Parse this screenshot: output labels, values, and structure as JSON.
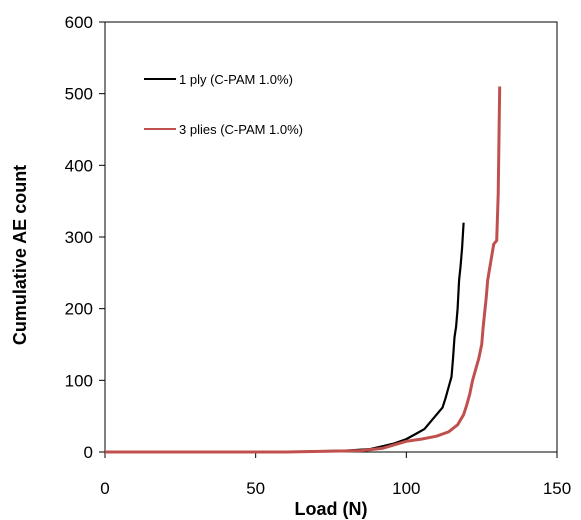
{
  "chart_data": {
    "type": "line",
    "xlabel": "Load (N)",
    "ylabel": "Cumulative AE count",
    "xlim": [
      0,
      150
    ],
    "ylim": [
      0,
      600
    ],
    "x_ticks": [
      0,
      50,
      100,
      150
    ],
    "y_ticks": [
      0,
      100,
      200,
      300,
      400,
      500,
      600
    ],
    "x_tick_labels": [
      "0",
      "50",
      "100",
      "150"
    ],
    "y_tick_labels": [
      "0",
      "100",
      "200",
      "300",
      "400",
      "500",
      "600"
    ],
    "grid": false,
    "legend_position": "top-left",
    "series": [
      {
        "name": "1 ply (C-PAM 1.0%)",
        "color": "#000000",
        "points": [
          [
            0,
            0
          ],
          [
            60,
            0
          ],
          [
            80,
            2
          ],
          [
            88,
            4
          ],
          [
            92,
            8
          ],
          [
            96,
            12
          ],
          [
            100,
            18
          ],
          [
            103,
            25
          ],
          [
            106,
            32
          ],
          [
            108,
            42
          ],
          [
            110,
            52
          ],
          [
            112,
            62
          ],
          [
            113,
            75
          ],
          [
            114,
            90
          ],
          [
            115,
            105
          ],
          [
            115.5,
            130
          ],
          [
            116,
            160
          ],
          [
            116.5,
            175
          ],
          [
            117,
            200
          ],
          [
            117.5,
            240
          ],
          [
            118,
            260
          ],
          [
            118.5,
            285
          ],
          [
            119,
            320
          ]
        ]
      },
      {
        "name": "3 plies (C-PAM 1.0%)",
        "color": "#c0504d",
        "points": [
          [
            0,
            0
          ],
          [
            60,
            0
          ],
          [
            85,
            2
          ],
          [
            92,
            5
          ],
          [
            96,
            10
          ],
          [
            100,
            15
          ],
          [
            105,
            18
          ],
          [
            110,
            22
          ],
          [
            114,
            28
          ],
          [
            117,
            38
          ],
          [
            119,
            52
          ],
          [
            120,
            65
          ],
          [
            121,
            80
          ],
          [
            122,
            100
          ],
          [
            123,
            115
          ],
          [
            124,
            130
          ],
          [
            125,
            150
          ],
          [
            125.5,
            175
          ],
          [
            126,
            195
          ],
          [
            126.5,
            215
          ],
          [
            127,
            240
          ],
          [
            128,
            265
          ],
          [
            129,
            290
          ],
          [
            130,
            295
          ],
          [
            130.5,
            360
          ],
          [
            131,
            510
          ]
        ]
      }
    ]
  }
}
